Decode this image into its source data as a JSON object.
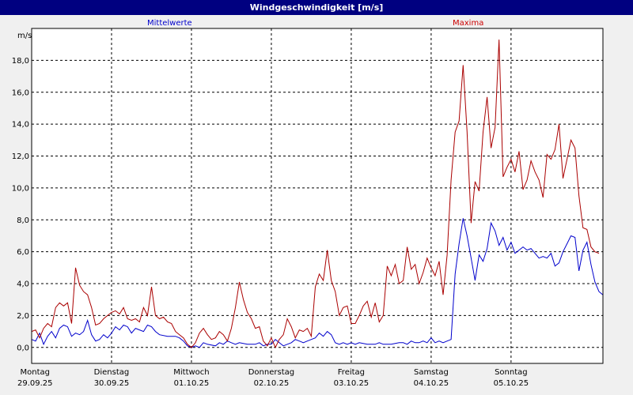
{
  "window": {
    "title": "Windgeschwindigkeit [m/s]"
  },
  "chart_data": {
    "type": "line",
    "title": "Windgeschwindigkeit [m/s]",
    "ylabel": "m/s",
    "ylim": [
      -1.0,
      20.0
    ],
    "yticks": [
      0.0,
      2.0,
      4.0,
      6.0,
      8.0,
      10.0,
      12.0,
      14.0,
      16.0,
      18.0
    ],
    "ytick_labels": [
      "0,0",
      "2,0",
      "4,0",
      "6,0",
      "8,0",
      "10,0",
      "12,0",
      "14,0",
      "16,0",
      "18,0"
    ],
    "grid": true,
    "xlim": [
      0,
      7.15
    ],
    "x_ticks": [
      {
        "x": 0,
        "day": "Montag",
        "date": "29.09.25"
      },
      {
        "x": 1,
        "day": "Dienstag",
        "date": "30.09.25"
      },
      {
        "x": 2,
        "day": "Mittwoch",
        "date": "01.10.25"
      },
      {
        "x": 3,
        "day": "Donnerstag",
        "date": "02.10.25"
      },
      {
        "x": 4,
        "day": "Freitag",
        "date": "03.10.25"
      },
      {
        "x": 5,
        "day": "Samstag",
        "date": "04.10.25"
      },
      {
        "x": 6,
        "day": "Sonntag",
        "date": "05.10.25"
      }
    ],
    "series": [
      {
        "name": "Mittelwerte",
        "color": "#0000cc",
        "points": [
          [
            0,
            0.5
          ],
          [
            0.05,
            0.4
          ],
          [
            0.1,
            0.9
          ],
          [
            0.15,
            0.2
          ],
          [
            0.2,
            0.7
          ],
          [
            0.25,
            1.0
          ],
          [
            0.3,
            0.6
          ],
          [
            0.35,
            1.2
          ],
          [
            0.4,
            1.4
          ],
          [
            0.45,
            1.3
          ],
          [
            0.5,
            0.7
          ],
          [
            0.55,
            0.9
          ],
          [
            0.6,
            0.8
          ],
          [
            0.65,
            1.0
          ],
          [
            0.7,
            1.7
          ],
          [
            0.75,
            0.8
          ],
          [
            0.8,
            0.4
          ],
          [
            0.85,
            0.5
          ],
          [
            0.9,
            0.8
          ],
          [
            0.95,
            0.6
          ],
          [
            1.0,
            0.9
          ],
          [
            1.05,
            1.3
          ],
          [
            1.1,
            1.1
          ],
          [
            1.15,
            1.4
          ],
          [
            1.2,
            1.3
          ],
          [
            1.25,
            0.9
          ],
          [
            1.3,
            1.2
          ],
          [
            1.35,
            1.1
          ],
          [
            1.4,
            1.0
          ],
          [
            1.45,
            1.4
          ],
          [
            1.5,
            1.3
          ],
          [
            1.55,
            1.0
          ],
          [
            1.6,
            0.8
          ],
          [
            1.7,
            0.7
          ],
          [
            1.8,
            0.7
          ],
          [
            1.85,
            0.6
          ],
          [
            1.9,
            0.4
          ],
          [
            1.95,
            0.1
          ],
          [
            2.0,
            0.0
          ],
          [
            2.05,
            0.1
          ],
          [
            2.1,
            0.0
          ],
          [
            2.15,
            0.3
          ],
          [
            2.2,
            0.2
          ],
          [
            2.3,
            0.1
          ],
          [
            2.35,
            0.3
          ],
          [
            2.4,
            0.2
          ],
          [
            2.45,
            0.4
          ],
          [
            2.5,
            0.3
          ],
          [
            2.55,
            0.2
          ],
          [
            2.6,
            0.3
          ],
          [
            2.7,
            0.2
          ],
          [
            2.8,
            0.2
          ],
          [
            2.85,
            0.3
          ],
          [
            2.9,
            0.1
          ],
          [
            2.95,
            0.2
          ],
          [
            3.0,
            0.2
          ],
          [
            3.05,
            0.5
          ],
          [
            3.1,
            0.3
          ],
          [
            3.15,
            0.1
          ],
          [
            3.2,
            0.2
          ],
          [
            3.25,
            0.3
          ],
          [
            3.3,
            0.5
          ],
          [
            3.35,
            0.4
          ],
          [
            3.4,
            0.3
          ],
          [
            3.45,
            0.4
          ],
          [
            3.5,
            0.5
          ],
          [
            3.55,
            0.6
          ],
          [
            3.6,
            0.9
          ],
          [
            3.65,
            0.7
          ],
          [
            3.7,
            1.0
          ],
          [
            3.75,
            0.8
          ],
          [
            3.8,
            0.3
          ],
          [
            3.85,
            0.2
          ],
          [
            3.9,
            0.3
          ],
          [
            3.95,
            0.2
          ],
          [
            4.0,
            0.3
          ],
          [
            4.05,
            0.2
          ],
          [
            4.1,
            0.3
          ],
          [
            4.2,
            0.2
          ],
          [
            4.3,
            0.2
          ],
          [
            4.35,
            0.3
          ],
          [
            4.4,
            0.2
          ],
          [
            4.5,
            0.2
          ],
          [
            4.6,
            0.3
          ],
          [
            4.65,
            0.3
          ],
          [
            4.7,
            0.2
          ],
          [
            4.75,
            0.4
          ],
          [
            4.8,
            0.3
          ],
          [
            4.85,
            0.3
          ],
          [
            4.9,
            0.4
          ],
          [
            4.95,
            0.3
          ],
          [
            5.0,
            0.6
          ],
          [
            5.05,
            0.3
          ],
          [
            5.1,
            0.4
          ],
          [
            5.15,
            0.3
          ],
          [
            5.2,
            0.4
          ],
          [
            5.25,
            0.5
          ],
          [
            5.3,
            4.6
          ],
          [
            5.35,
            6.5
          ],
          [
            5.4,
            8.1
          ],
          [
            5.45,
            7.0
          ],
          [
            5.5,
            5.6
          ],
          [
            5.55,
            4.2
          ],
          [
            5.6,
            5.8
          ],
          [
            5.65,
            5.4
          ],
          [
            5.7,
            6.2
          ],
          [
            5.75,
            7.8
          ],
          [
            5.8,
            7.3
          ],
          [
            5.85,
            6.4
          ],
          [
            5.9,
            6.9
          ],
          [
            5.95,
            6.1
          ],
          [
            6.0,
            6.6
          ],
          [
            6.05,
            5.9
          ],
          [
            6.1,
            6.1
          ],
          [
            6.15,
            6.3
          ],
          [
            6.2,
            6.1
          ],
          [
            6.25,
            6.2
          ],
          [
            6.3,
            5.9
          ],
          [
            6.35,
            5.6
          ],
          [
            6.4,
            5.7
          ],
          [
            6.45,
            5.6
          ],
          [
            6.5,
            5.9
          ],
          [
            6.55,
            5.1
          ],
          [
            6.6,
            5.3
          ],
          [
            6.65,
            6.0
          ],
          [
            6.7,
            6.5
          ],
          [
            6.75,
            7.0
          ],
          [
            6.8,
            6.9
          ],
          [
            6.85,
            4.8
          ],
          [
            6.9,
            6.1
          ],
          [
            6.95,
            6.6
          ],
          [
            7.0,
            5.2
          ],
          [
            7.05,
            4.1
          ],
          [
            7.1,
            3.5
          ],
          [
            7.15,
            3.3
          ]
        ]
      },
      {
        "name": "Maxima",
        "color": "#aa0000",
        "points": [
          [
            0,
            1.0
          ],
          [
            0.05,
            1.1
          ],
          [
            0.1,
            0.6
          ],
          [
            0.15,
            1.2
          ],
          [
            0.2,
            1.5
          ],
          [
            0.25,
            1.3
          ],
          [
            0.3,
            2.5
          ],
          [
            0.35,
            2.8
          ],
          [
            0.4,
            2.6
          ],
          [
            0.45,
            2.8
          ],
          [
            0.5,
            1.5
          ],
          [
            0.55,
            5.0
          ],
          [
            0.6,
            3.9
          ],
          [
            0.65,
            3.5
          ],
          [
            0.7,
            3.3
          ],
          [
            0.75,
            2.5
          ],
          [
            0.8,
            1.4
          ],
          [
            0.85,
            1.5
          ],
          [
            0.9,
            1.8
          ],
          [
            0.95,
            2.0
          ],
          [
            1.0,
            2.2
          ],
          [
            1.05,
            2.3
          ],
          [
            1.1,
            2.1
          ],
          [
            1.15,
            2.5
          ],
          [
            1.2,
            1.8
          ],
          [
            1.25,
            1.7
          ],
          [
            1.3,
            1.8
          ],
          [
            1.35,
            1.6
          ],
          [
            1.4,
            2.5
          ],
          [
            1.45,
            2.0
          ],
          [
            1.5,
            3.8
          ],
          [
            1.55,
            2.0
          ],
          [
            1.6,
            1.8
          ],
          [
            1.65,
            1.9
          ],
          [
            1.7,
            1.6
          ],
          [
            1.75,
            1.5
          ],
          [
            1.8,
            1.0
          ],
          [
            1.85,
            0.8
          ],
          [
            1.9,
            0.6
          ],
          [
            1.95,
            0.2
          ],
          [
            2.0,
            0.0
          ],
          [
            2.05,
            0.3
          ],
          [
            2.1,
            0.9
          ],
          [
            2.15,
            1.2
          ],
          [
            2.2,
            0.8
          ],
          [
            2.25,
            0.5
          ],
          [
            2.3,
            0.6
          ],
          [
            2.35,
            1.0
          ],
          [
            2.4,
            0.8
          ],
          [
            2.45,
            0.4
          ],
          [
            2.5,
            1.2
          ],
          [
            2.55,
            2.5
          ],
          [
            2.6,
            4.1
          ],
          [
            2.65,
            3.0
          ],
          [
            2.7,
            2.2
          ],
          [
            2.75,
            1.8
          ],
          [
            2.8,
            1.2
          ],
          [
            2.85,
            1.3
          ],
          [
            2.9,
            0.4
          ],
          [
            2.95,
            0.1
          ],
          [
            3.0,
            0.6
          ],
          [
            3.05,
            0.0
          ],
          [
            3.1,
            0.5
          ],
          [
            3.15,
            0.8
          ],
          [
            3.2,
            1.8
          ],
          [
            3.25,
            1.3
          ],
          [
            3.3,
            0.6
          ],
          [
            3.35,
            1.1
          ],
          [
            3.4,
            1.0
          ],
          [
            3.45,
            1.2
          ],
          [
            3.5,
            0.7
          ],
          [
            3.55,
            3.8
          ],
          [
            3.6,
            4.6
          ],
          [
            3.65,
            4.2
          ],
          [
            3.7,
            6.1
          ],
          [
            3.75,
            4.2
          ],
          [
            3.8,
            3.5
          ],
          [
            3.85,
            2.0
          ],
          [
            3.9,
            2.5
          ],
          [
            3.95,
            2.6
          ],
          [
            4.0,
            1.5
          ],
          [
            4.05,
            1.5
          ],
          [
            4.1,
            2.0
          ],
          [
            4.15,
            2.6
          ],
          [
            4.2,
            2.9
          ],
          [
            4.25,
            1.9
          ],
          [
            4.3,
            2.8
          ],
          [
            4.35,
            1.6
          ],
          [
            4.4,
            2.0
          ],
          [
            4.45,
            5.1
          ],
          [
            4.5,
            4.5
          ],
          [
            4.55,
            5.2
          ],
          [
            4.6,
            4.0
          ],
          [
            4.65,
            4.2
          ],
          [
            4.7,
            6.3
          ],
          [
            4.75,
            4.9
          ],
          [
            4.8,
            5.2
          ],
          [
            4.85,
            4.0
          ],
          [
            4.9,
            4.7
          ],
          [
            4.95,
            5.6
          ],
          [
            5.0,
            5.0
          ],
          [
            5.05,
            4.5
          ],
          [
            5.1,
            5.4
          ],
          [
            5.15,
            3.3
          ],
          [
            5.2,
            5.8
          ],
          [
            5.25,
            10.5
          ],
          [
            5.3,
            13.5
          ],
          [
            5.35,
            14.2
          ],
          [
            5.4,
            17.7
          ],
          [
            5.45,
            13.5
          ],
          [
            5.5,
            7.8
          ],
          [
            5.55,
            10.4
          ],
          [
            5.6,
            9.8
          ],
          [
            5.65,
            13.5
          ],
          [
            5.7,
            15.7
          ],
          [
            5.75,
            12.5
          ],
          [
            5.8,
            13.8
          ],
          [
            5.85,
            19.3
          ],
          [
            5.9,
            10.7
          ],
          [
            5.95,
            11.3
          ],
          [
            6.0,
            11.8
          ],
          [
            6.05,
            11.0
          ],
          [
            6.1,
            12.3
          ],
          [
            6.15,
            9.9
          ],
          [
            6.2,
            10.5
          ],
          [
            6.25,
            11.7
          ],
          [
            6.3,
            11.0
          ],
          [
            6.35,
            10.5
          ],
          [
            6.4,
            9.4
          ],
          [
            6.45,
            12.1
          ],
          [
            6.5,
            11.8
          ],
          [
            6.55,
            12.4
          ],
          [
            6.6,
            14.0
          ],
          [
            6.65,
            10.6
          ],
          [
            6.7,
            11.8
          ],
          [
            6.75,
            13.0
          ],
          [
            6.8,
            12.5
          ],
          [
            6.85,
            9.5
          ],
          [
            6.9,
            7.5
          ],
          [
            6.95,
            7.4
          ],
          [
            7.0,
            6.3
          ],
          [
            7.05,
            6.0
          ],
          [
            7.1,
            5.9
          ]
        ]
      }
    ]
  }
}
